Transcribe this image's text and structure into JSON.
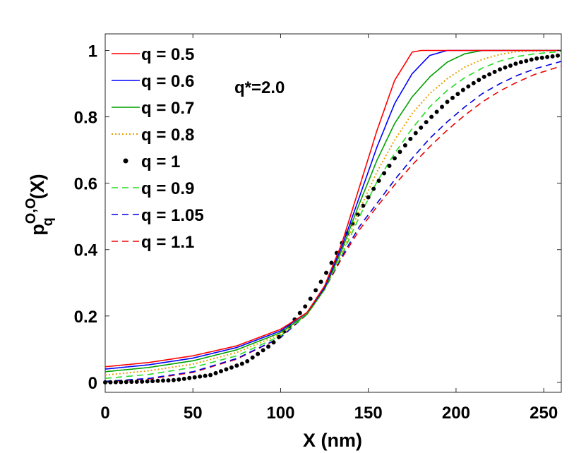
{
  "chart_data": {
    "type": "line",
    "title": "",
    "xlabel": "X (nm)",
    "ylabel": {
      "base": "p",
      "superscript": "O,O",
      "subscript": "q",
      "tail": "(X)"
    },
    "xlim": [
      0,
      260
    ],
    "ylim": [
      -0.03,
      1.05
    ],
    "xticks": [
      0,
      50,
      100,
      150,
      200,
      250
    ],
    "yticks": [
      0,
      0.2,
      0.4,
      0.6,
      0.8,
      1
    ],
    "xtick_labels": [
      "0",
      "50",
      "100",
      "150",
      "200",
      "250"
    ],
    "ytick_labels": [
      "0",
      "0.2",
      "0.4",
      "0.6",
      "0.8",
      "1"
    ],
    "grid": false,
    "legend_position": "top-left",
    "annotation": "q*=2.0",
    "series": [
      {
        "name": "q = 0.5",
        "color": "#ff0000",
        "style": "solid",
        "x": [
          0,
          25,
          50,
          75,
          100,
          115,
          125,
          135,
          145,
          155,
          165,
          175,
          180,
          200,
          260
        ],
        "y": [
          0.047,
          0.06,
          0.08,
          0.11,
          0.16,
          0.21,
          0.29,
          0.42,
          0.59,
          0.76,
          0.91,
          0.995,
          1.0,
          1.0,
          1.0
        ]
      },
      {
        "name": "q = 0.6",
        "color": "#0000ff",
        "style": "solid",
        "x": [
          0,
          25,
          50,
          75,
          100,
          115,
          125,
          135,
          145,
          155,
          165,
          175,
          185,
          195,
          260
        ],
        "y": [
          0.04,
          0.053,
          0.073,
          0.105,
          0.155,
          0.21,
          0.285,
          0.41,
          0.56,
          0.71,
          0.84,
          0.93,
          0.985,
          1.0,
          1.0
        ]
      },
      {
        "name": "q = 0.7",
        "color": "#00a000",
        "style": "solid",
        "x": [
          0,
          25,
          50,
          75,
          100,
          115,
          125,
          135,
          145,
          155,
          165,
          175,
          185,
          195,
          205,
          215,
          260
        ],
        "y": [
          0.032,
          0.045,
          0.065,
          0.098,
          0.15,
          0.205,
          0.28,
          0.4,
          0.54,
          0.67,
          0.78,
          0.86,
          0.92,
          0.965,
          0.99,
          1.0,
          1.0
        ]
      },
      {
        "name": "q = 0.8",
        "color": "#e8a000",
        "style": "dotted",
        "x": [
          0,
          25,
          50,
          75,
          100,
          115,
          125,
          135,
          145,
          155,
          165,
          175,
          185,
          195,
          205,
          215,
          225,
          235,
          260
        ],
        "y": [
          0.022,
          0.035,
          0.055,
          0.09,
          0.145,
          0.205,
          0.28,
          0.39,
          0.52,
          0.635,
          0.73,
          0.81,
          0.87,
          0.915,
          0.95,
          0.973,
          0.988,
          0.997,
          1.0
        ]
      },
      {
        "name": "q = 1",
        "color": "#000000",
        "style": "markers",
        "x": [
          0,
          20,
          40,
          60,
          80,
          95,
          105,
          115,
          125,
          135,
          145,
          155,
          165,
          175,
          185,
          195,
          205,
          215,
          225,
          235,
          245,
          260
        ],
        "y": [
          0.0,
          0.002,
          0.007,
          0.022,
          0.06,
          0.115,
          0.17,
          0.235,
          0.32,
          0.42,
          0.515,
          0.6,
          0.675,
          0.74,
          0.795,
          0.845,
          0.885,
          0.918,
          0.943,
          0.962,
          0.975,
          0.986
        ]
      },
      {
        "name": "q = 0.9",
        "color": "#22dd22",
        "style": "dashed",
        "x": [
          0,
          25,
          50,
          75,
          100,
          115,
          125,
          135,
          145,
          155,
          165,
          175,
          185,
          195,
          205,
          215,
          225,
          235,
          245,
          260
        ],
        "y": [
          0.012,
          0.024,
          0.045,
          0.08,
          0.14,
          0.205,
          0.28,
          0.385,
          0.5,
          0.605,
          0.69,
          0.765,
          0.83,
          0.88,
          0.918,
          0.947,
          0.968,
          0.982,
          0.99,
          0.997
        ]
      },
      {
        "name": "q = 1.05",
        "color": "#0000dd",
        "style": "dashed",
        "x": [
          0,
          25,
          50,
          75,
          100,
          115,
          125,
          135,
          145,
          155,
          165,
          175,
          185,
          195,
          205,
          215,
          225,
          235,
          245,
          260
        ],
        "y": [
          0.003,
          0.012,
          0.032,
          0.072,
          0.135,
          0.205,
          0.28,
          0.38,
          0.47,
          0.54,
          0.61,
          0.675,
          0.735,
          0.785,
          0.83,
          0.87,
          0.9,
          0.925,
          0.945,
          0.967
        ]
      },
      {
        "name": "q = 1.1",
        "color": "#ee0000",
        "style": "dashed",
        "x": [
          0,
          25,
          50,
          75,
          100,
          115,
          125,
          135,
          145,
          155,
          165,
          175,
          185,
          195,
          205,
          215,
          225,
          235,
          245,
          260
        ],
        "y": [
          0.002,
          0.01,
          0.03,
          0.07,
          0.135,
          0.205,
          0.28,
          0.375,
          0.46,
          0.53,
          0.595,
          0.655,
          0.71,
          0.76,
          0.805,
          0.845,
          0.878,
          0.905,
          0.928,
          0.953
        ]
      }
    ]
  }
}
